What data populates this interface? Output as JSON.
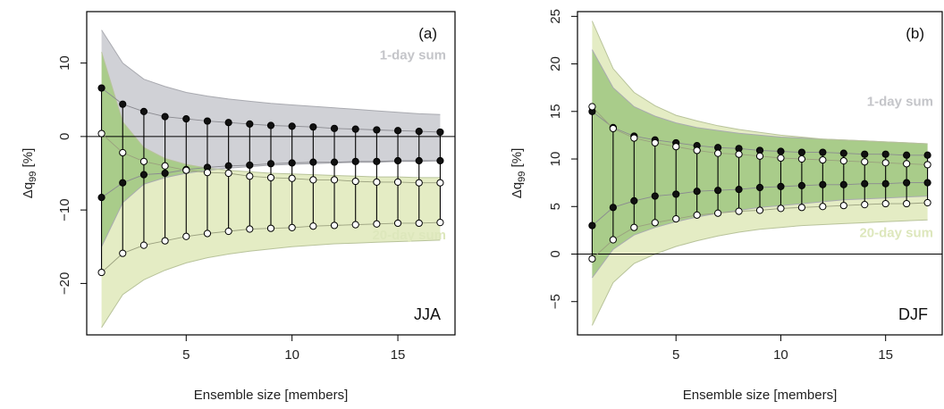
{
  "colors": {
    "band_1day": "#d0d1d6",
    "band_1day_edge": "#a9aab0",
    "band_20day": "#e4ecc4",
    "band_20day_edge": "#b8c39a",
    "overlap": "#a9cc8a",
    "label_1day": "#c4c5c9",
    "label_20day": "#dde7bc",
    "marker_filled": "#111111",
    "marker_open": "#ffffff"
  },
  "chart_data": [
    {
      "type": "line",
      "panel": "(a)",
      "season": "JJA",
      "xlabel": "Ensemble size [members]",
      "ylabel_main": "Δq",
      "ylabel_sub": "99",
      "ylabel_unit": " [%]",
      "xlim": [
        0.3,
        17.7
      ],
      "ylim": [
        -27,
        17
      ],
      "xticks": [
        5,
        10,
        15
      ],
      "yticks": [
        -20,
        -10,
        0,
        10
      ],
      "ytick_labels": [
        "−20",
        "−10",
        "0",
        "10"
      ],
      "hline": 0,
      "x": [
        1,
        2,
        3,
        4,
        5,
        6,
        7,
        8,
        9,
        10,
        11,
        12,
        13,
        14,
        15,
        16,
        17
      ],
      "band_labels": {
        "one_day": "1-day sum",
        "twenty_day": "20-day sum"
      },
      "series": [
        {
          "name": "1-day sum",
          "upper_band": [
            14.5,
            10,
            7.8,
            6.8,
            6,
            5.5,
            5.1,
            4.8,
            4.5,
            4.3,
            4.1,
            3.9,
            3.7,
            3.5,
            3.3,
            3.1,
            3.0
          ],
          "lower_band": [
            -15,
            -9,
            -6.5,
            -5.6,
            -5,
            -4.6,
            -4.3,
            -4.1,
            -3.9,
            -3.8,
            -3.7,
            -3.6,
            -3.5,
            -3.5,
            -3.4,
            -3.4,
            -3.3
          ],
          "upper_mark": [
            6.6,
            4.4,
            3.4,
            2.7,
            2.4,
            2.1,
            1.9,
            1.7,
            1.5,
            1.4,
            1.3,
            1.1,
            1.0,
            0.9,
            0.8,
            0.7,
            0.6
          ],
          "lower_mark": [
            -8.3,
            -6.3,
            -5.2,
            -5.0,
            -4.5,
            -4.2,
            -4.0,
            -3.9,
            -3.7,
            -3.6,
            -3.5,
            -3.5,
            -3.4,
            -3.4,
            -3.3,
            -3.3,
            -3.3
          ]
        },
        {
          "name": "20-day sum",
          "upper_band": [
            11.5,
            2,
            -1.5,
            -3,
            -3.8,
            -4.3,
            -4.6,
            -4.8,
            -5,
            -5.1,
            -5.2,
            -5.3,
            -5.4,
            -5.5,
            -5.5,
            -5.6,
            -5.6
          ],
          "lower_band": [
            -26,
            -21.5,
            -19.5,
            -18.2,
            -17.2,
            -16.5,
            -16,
            -15.6,
            -15.3,
            -15,
            -14.8,
            -14.6,
            -14.5,
            -14.4,
            -14.3,
            -14.2,
            -14.1
          ],
          "upper_mark": [
            0.4,
            -2.2,
            -3.4,
            -4.0,
            -4.6,
            -4.9,
            -5.0,
            -5.4,
            -5.6,
            -5.7,
            -5.9,
            -5.9,
            -6.1,
            -6.2,
            -6.2,
            -6.3,
            -6.3
          ],
          "lower_mark": [
            -18.5,
            -15.9,
            -14.8,
            -14.2,
            -13.6,
            -13.2,
            -12.9,
            -12.6,
            -12.5,
            -12.4,
            -12.2,
            -12.1,
            -12.0,
            -11.9,
            -11.8,
            -11.8,
            -11.7
          ]
        }
      ]
    },
    {
      "type": "line",
      "panel": "(b)",
      "season": "DJF",
      "xlabel": "Ensemble size [members]",
      "ylabel_main": "Δq",
      "ylabel_sub": "99",
      "ylabel_unit": " [%]",
      "xlim": [
        0.3,
        17.7
      ],
      "ylim": [
        -8.5,
        25.5
      ],
      "xticks": [
        5,
        10,
        15
      ],
      "yticks": [
        -5,
        0,
        5,
        10,
        15,
        20,
        25
      ],
      "ytick_labels": [
        "−5",
        "0",
        "5",
        "10",
        "15",
        "20",
        "25"
      ],
      "hline": 0,
      "x": [
        1,
        2,
        3,
        4,
        5,
        6,
        7,
        8,
        9,
        10,
        11,
        12,
        13,
        14,
        15,
        16,
        17
      ],
      "band_labels": {
        "one_day": "1-day sum",
        "twenty_day": "20-day sum"
      },
      "series": [
        {
          "name": "1-day sum",
          "upper_band": [
            21.5,
            17.5,
            15.5,
            14.5,
            13.8,
            13.3,
            13,
            12.7,
            12.5,
            12.3,
            12.2,
            12.1,
            12,
            11.9,
            11.8,
            11.7,
            11.6
          ],
          "lower_band": [
            -2.5,
            0.5,
            2,
            2.8,
            3.4,
            3.9,
            4.3,
            4.6,
            4.9,
            5.1,
            5.3,
            5.5,
            5.7,
            5.8,
            5.9,
            6.0,
            6.1
          ],
          "upper_mark": [
            15.0,
            13.3,
            12.4,
            12.0,
            11.7,
            11.4,
            11.2,
            11.1,
            10.9,
            10.8,
            10.7,
            10.7,
            10.6,
            10.5,
            10.5,
            10.4,
            10.4
          ],
          "lower_mark": [
            3.0,
            4.9,
            5.6,
            6.1,
            6.3,
            6.6,
            6.7,
            6.8,
            7.0,
            7.1,
            7.2,
            7.3,
            7.3,
            7.4,
            7.4,
            7.5,
            7.5
          ]
        },
        {
          "name": "20-day sum",
          "upper_band": [
            24.5,
            19.5,
            17,
            15.6,
            14.6,
            14,
            13.5,
            13.1,
            12.8,
            12.5,
            12.3,
            12.1,
            12,
            11.9,
            11.8,
            11.7,
            11.6
          ],
          "lower_band": [
            -7.5,
            -3,
            -1,
            0,
            0.8,
            1.4,
            1.9,
            2.3,
            2.6,
            2.8,
            3.0,
            3.1,
            3.2,
            3.3,
            3.4,
            3.5,
            3.6
          ],
          "upper_mark": [
            15.5,
            13.2,
            12.2,
            11.7,
            11.3,
            10.9,
            10.6,
            10.5,
            10.3,
            10.1,
            10.0,
            9.9,
            9.8,
            9.7,
            9.6,
            9.5,
            9.4
          ],
          "lower_mark": [
            -0.5,
            1.5,
            2.8,
            3.3,
            3.7,
            4.1,
            4.3,
            4.5,
            4.6,
            4.8,
            4.9,
            5.0,
            5.1,
            5.2,
            5.3,
            5.3,
            5.4
          ]
        }
      ]
    }
  ]
}
